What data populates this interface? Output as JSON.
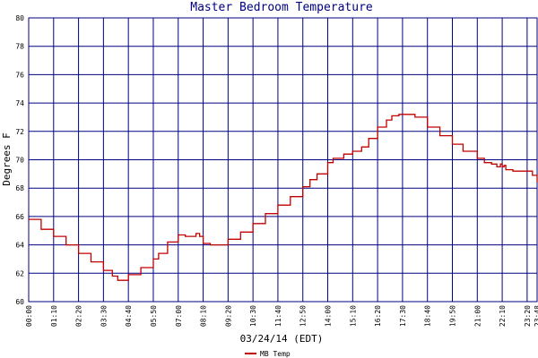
{
  "chart_data": {
    "type": "line",
    "title": "Master Bedroom Temperature",
    "ylabel": "Degrees F",
    "xlabel": "03/24/14 (EDT)",
    "ylim": [
      60,
      80
    ],
    "yticks": [
      60,
      62,
      64,
      66,
      68,
      70,
      72,
      74,
      76,
      78,
      80
    ],
    "xticks": [
      "00:00",
      "01:10",
      "02:20",
      "03:30",
      "04:40",
      "05:50",
      "07:00",
      "08:10",
      "09:20",
      "10:30",
      "11:40",
      "12:50",
      "14:00",
      "15:10",
      "16:20",
      "17:30",
      "18:40",
      "19:50",
      "21:00",
      "22:10",
      "23:20",
      "23:48"
    ],
    "grid": true,
    "legend_position": "bottom-center",
    "colors": {
      "series": "#c00000",
      "grid": "#000080",
      "title": "#000080"
    },
    "series": [
      {
        "name": "MB Temp",
        "x": [
          "00:00",
          "00:35",
          "01:10",
          "01:45",
          "02:20",
          "02:55",
          "03:30",
          "03:55",
          "04:10",
          "04:25",
          "04:40",
          "05:15",
          "05:50",
          "06:05",
          "06:30",
          "07:00",
          "07:20",
          "07:50",
          "08:00",
          "08:10",
          "08:30",
          "09:00",
          "09:20",
          "09:55",
          "10:30",
          "11:05",
          "11:40",
          "12:15",
          "12:50",
          "13:10",
          "13:30",
          "14:00",
          "14:15",
          "14:30",
          "14:45",
          "15:10",
          "15:35",
          "15:55",
          "16:20",
          "16:45",
          "17:00",
          "17:20",
          "17:45",
          "18:05",
          "18:40",
          "19:15",
          "19:50",
          "20:20",
          "21:00",
          "21:20",
          "21:40",
          "21:55",
          "22:05",
          "22:10",
          "22:15",
          "22:20",
          "22:40",
          "23:00",
          "23:20",
          "23:35",
          "23:48"
        ],
        "values": [
          65.8,
          65.1,
          64.6,
          64.0,
          63.4,
          62.8,
          62.2,
          61.8,
          61.5,
          61.5,
          61.9,
          62.4,
          63.0,
          63.4,
          64.2,
          64.7,
          64.6,
          64.8,
          64.6,
          64.1,
          64.0,
          64.0,
          64.4,
          64.9,
          65.5,
          66.2,
          66.8,
          67.4,
          68.1,
          68.6,
          69.0,
          69.8,
          70.1,
          70.1,
          70.4,
          70.6,
          70.9,
          71.5,
          72.3,
          72.8,
          73.1,
          73.2,
          73.2,
          73.0,
          72.3,
          71.7,
          71.1,
          70.6,
          70.1,
          69.8,
          69.7,
          69.5,
          69.7,
          69.5,
          69.6,
          69.3,
          69.2,
          69.2,
          69.2,
          68.9,
          68.4
        ]
      }
    ]
  }
}
